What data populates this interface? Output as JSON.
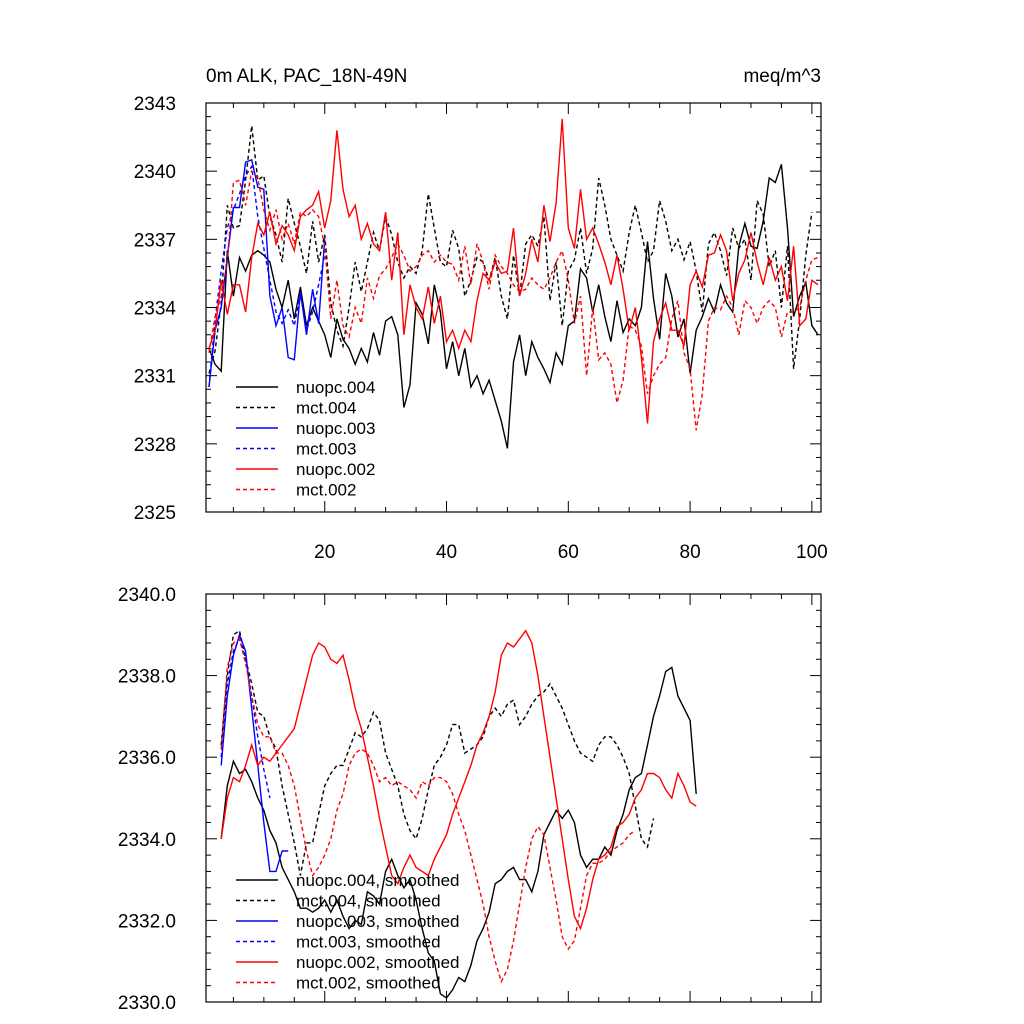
{
  "chart_data": [
    {
      "type": "line",
      "title": "0m ALK, PAC_18N-49N",
      "units": "meq/m^3",
      "xlabel": "",
      "ylabel": "",
      "xlim": [
        0.5,
        101.5
      ],
      "ylim": [
        2325,
        2343
      ],
      "xticks": [
        20,
        40,
        60,
        80,
        100
      ],
      "xtick_labels": [
        "20",
        "40",
        "60",
        "80",
        "100"
      ],
      "yticks": [
        2325,
        2328,
        2331,
        2334,
        2337,
        2340,
        2343
      ],
      "ytick_labels": [
        "2325",
        "2328",
        "2331",
        "2334",
        "2337",
        "2340",
        "2343"
      ],
      "legend_position": "bottom-left",
      "series": [
        {
          "name": "nuopc.004",
          "color": "#000000",
          "dash": "solid",
          "x_start": 1,
          "values": [
            2332.2,
            2331.5,
            2331.2,
            2336.5,
            2334.5,
            2336.2,
            2335.6,
            2336.3,
            2336.5,
            2336.3,
            2336.0,
            2334.8,
            2334.0,
            2335.2,
            2333.5,
            2334.9,
            2333.2,
            2334.0,
            2333.4,
            2332.8,
            2331.8,
            2333.5,
            2332.6,
            2332.2,
            2331.5,
            2332.2,
            2331.6,
            2332.9,
            2331.9,
            2333.4,
            2333.6,
            2332.8,
            2329.6,
            2330.6,
            2334.2,
            2333.7,
            2332.4,
            2335.0,
            2333.8,
            2331.3,
            2332.5,
            2331.0,
            2332.2,
            2330.5,
            2331.0,
            2330.2,
            2330.8,
            2329.9,
            2329.0,
            2327.8,
            2331.6,
            2332.8,
            2331.0,
            2332.5,
            2331.8,
            2331.3,
            2330.7,
            2332.0,
            2331.5,
            2333.2,
            2333.4,
            2335.7,
            2335.3,
            2333.8,
            2335.0,
            2333.6,
            2332.5,
            2334.3,
            2332.9,
            2333.5,
            2333.2,
            2334.0,
            2336.9,
            2334.4,
            2332.6,
            2335.5,
            2334.5,
            2332.7,
            2333.5,
            2331.1,
            2333.0,
            2333.6,
            2334.4,
            2333.8,
            2335.0,
            2334.2,
            2333.8,
            2336.7,
            2337.7,
            2336.7,
            2336.6,
            2337.8,
            2339.7,
            2339.5,
            2340.3,
            2337.5,
            2333.6,
            2334.5,
            2335.1,
            2333.2,
            2332.8
          ]
        },
        {
          "name": "mct.004",
          "color": "#000000",
          "dash": "dashed",
          "x_start": 1,
          "values": [
            2331.1,
            2332.1,
            2334.2,
            2338.5,
            2337.5,
            2337.6,
            2339.6,
            2342.0,
            2339.6,
            2339.8,
            2338.0,
            2337.2,
            2336.0,
            2338.8,
            2337.7,
            2336.7,
            2335.5,
            2337.8,
            2336.0,
            2337.2,
            2334.2,
            2333.0,
            2332.3,
            2334.0,
            2336.0,
            2334.7,
            2336.0,
            2337.3,
            2336.5,
            2338.0,
            2337.2,
            2336.0,
            2335.3,
            2335.8,
            2335.5,
            2336.5,
            2339.0,
            2337.5,
            2336.0,
            2335.8,
            2337.4,
            2336.6,
            2334.5,
            2335.2,
            2336.2,
            2336.0,
            2335.2,
            2336.2,
            2334.5,
            2333.5,
            2336.3,
            2334.5,
            2336.8,
            2337.2,
            2336.7,
            2338.0,
            2334.3,
            2336.0,
            2333.2,
            2335.6,
            2336.1,
            2337.5,
            2335.5,
            2336.6,
            2339.7,
            2338.5,
            2337.0,
            2336.3,
            2335.6,
            2337.3,
            2338.5,
            2337.3,
            2336.0,
            2336.5,
            2338.7,
            2337.8,
            2336.5,
            2337.0,
            2336.1,
            2336.9,
            2335.6,
            2333.8,
            2336.8,
            2337.3,
            2336.5,
            2335.4,
            2337.5,
            2336.6,
            2337.0,
            2335.2,
            2338.7,
            2338.1,
            2335.8,
            2336.5,
            2334.0,
            2336.7,
            2331.3,
            2333.5,
            2336.3,
            2338.2
          ]
        },
        {
          "name": "nuopc.003",
          "color": "#0000ff",
          "dash": "solid",
          "x_start": 1,
          "values": [
            2330.5,
            2333.0,
            2334.0,
            2336.2,
            2338.4,
            2338.4,
            2340.4,
            2340.5,
            2339.3,
            2339.2,
            2334.5,
            2333.2,
            2334.0,
            2331.8,
            2331.7,
            2334.7,
            2332.8,
            2334.8,
            2333.3,
            2337.0
          ]
        },
        {
          "name": "mct.003",
          "color": "#0000ff",
          "dash": "dashed",
          "x_start": 1,
          "values": [
            2330.5,
            2333.5,
            2335.6,
            2337.5,
            2338.3,
            2339.0,
            2339.8,
            2340.2,
            2338.0,
            2336.6,
            2335.2,
            2333.8,
            2333.3,
            2333.9,
            2333.2,
            2334.6,
            2333.0,
            2333.8,
            2335.0,
            2336.3
          ]
        },
        {
          "name": "nuopc.002",
          "color": "#ff0000",
          "dash": "solid",
          "x_start": 1,
          "values": [
            2332.2,
            2333.0,
            2335.2,
            2333.7,
            2335.0,
            2335.0,
            2333.8,
            2336.2,
            2337.7,
            2337.2,
            2338.2,
            2336.8,
            2337.6,
            2337.2,
            2336.5,
            2338.0,
            2338.3,
            2338.5,
            2339.1,
            2337.5,
            2338.7,
            2341.8,
            2339.2,
            2338.0,
            2338.5,
            2337.0,
            2337.7,
            2336.8,
            2336.5,
            2338.2,
            2335.2,
            2337.3,
            2332.8,
            2335.0,
            2334.0,
            2333.5,
            2334.9,
            2333.3,
            2334.5,
            2332.5,
            2333.0,
            2332.2,
            2333.0,
            2332.5,
            2334.3,
            2335.5,
            2335.2,
            2336.0,
            2335.5,
            2335.6,
            2337.5,
            2334.5,
            2335.5,
            2337.0,
            2336.0,
            2338.5,
            2336.9,
            2338.6,
            2342.3,
            2337.5,
            2336.6,
            2339.2,
            2337.0,
            2337.5,
            2336.8,
            2336.0,
            2335.0,
            2336.3,
            2334.8,
            2333.0,
            2334.0,
            2331.8,
            2328.9,
            2332.5,
            2333.5,
            2334.2,
            2333.0,
            2333.0,
            2332.3,
            2335.0,
            2335.6,
            2334.9,
            2336.3,
            2336.4,
            2337.2,
            2336.5,
            2334.3,
            2335.5,
            2336.1,
            2337.3,
            2336.0,
            2335.0,
            2336.2,
            2335.2,
            2335.8,
            2334.3,
            2336.7,
            2333.2,
            2333.5,
            2335.2,
            2335.0
          ]
        },
        {
          "name": "mct.002",
          "color": "#ff0000",
          "dash": "dashed",
          "x_start": 1,
          "values": [
            2332.0,
            2333.6,
            2334.5,
            2336.0,
            2339.5,
            2339.6,
            2338.5,
            2340.0,
            2339.7,
            2338.3,
            2337.4,
            2338.3,
            2337.0,
            2337.7,
            2336.8,
            2338.2,
            2338.0,
            2338.3,
            2338.0,
            2336.7,
            2333.5,
            2335.2,
            2333.2,
            2332.7,
            2334.0,
            2333.3,
            2335.3,
            2334.4,
            2335.4,
            2335.7,
            2336.2,
            2336.8,
            2336.3,
            2335.6,
            2335.8,
            2336.3,
            2336.5,
            2336.0,
            2336.3,
            2336.0,
            2335.9,
            2335.2,
            2336.7,
            2335.0,
            2336.8,
            2336.0,
            2334.8,
            2336.3,
            2335.8,
            2335.5,
            2335.0,
            2334.7,
            2334.8,
            2335.3,
            2335.0,
            2334.8,
            2335.3,
            2336.0,
            2336.5,
            2335.2,
            2333.3,
            2334.5,
            2331.0,
            2334.0,
            2331.7,
            2332.0,
            2331.5,
            2329.8,
            2330.8,
            2333.2,
            2333.0,
            2332.3,
            2330.2,
            2331.0,
            2331.5,
            2331.8,
            2333.5,
            2334.3,
            2332.0,
            2331.3,
            2328.6,
            2330.2,
            2333.4,
            2334.0,
            2333.9,
            2334.5,
            2334.0,
            2332.8,
            2334.3,
            2334.0,
            2333.3,
            2334.0,
            2334.3,
            2334.0,
            2332.7,
            2333.8,
            2333.8,
            2334.0,
            2335.2,
            2336.1,
            2336.2
          ]
        }
      ]
    },
    {
      "type": "line",
      "title": "",
      "xlabel": "",
      "ylabel": "",
      "xlim": [
        0.5,
        101.5
      ],
      "ylim": [
        2330.0,
        2340.0
      ],
      "xticks": [
        20,
        40,
        60,
        80,
        100
      ],
      "xtick_labels": [],
      "yticks": [
        2330,
        2332,
        2334,
        2336,
        2338,
        2340
      ],
      "ytick_labels": [
        "2330.0",
        "2332.0",
        "2334.0",
        "2336.0",
        "2338.0",
        "2340.0"
      ],
      "legend_position": "bottom-left",
      "series": [
        {
          "name": "nuopc.004, smoothed",
          "color": "#000000",
          "dash": "solid",
          "x_start": 3,
          "values": [
            2334.0,
            2335.3,
            2335.9,
            2335.6,
            2335.7,
            2335.4,
            2335.0,
            2334.7,
            2334.2,
            2333.9,
            2333.3,
            2333.0,
            2332.7,
            2332.3,
            2332.3,
            2332.2,
            2332.3,
            2332.5,
            2332.2,
            2332.5,
            2332.1,
            2331.8,
            2332.0,
            2331.9,
            2332.7,
            2332.6,
            2332.4,
            2333.2,
            2333.5,
            2333.1,
            2332.8,
            2333.0,
            2332.5,
            2331.8,
            2331.2,
            2331.0,
            2330.2,
            2330.1,
            2330.3,
            2330.6,
            2330.5,
            2330.9,
            2331.5,
            2331.8,
            2332.2,
            2332.9,
            2333.0,
            2333.2,
            2333.3,
            2333.0,
            2333.0,
            2332.7,
            2333.2,
            2334.1,
            2334.4,
            2334.7,
            2334.5,
            2334.7,
            2334.4,
            2333.6,
            2333.3,
            2333.5,
            2333.5,
            2333.8,
            2333.6,
            2334.2,
            2334.6,
            2335.2,
            2335.5,
            2335.6,
            2336.3,
            2337.0,
            2337.5,
            2338.1,
            2338.2,
            2337.5,
            2337.2,
            2336.9,
            2335.1
          ]
        },
        {
          "name": "mct.004, smoothed",
          "color": "#000000",
          "dash": "dashed",
          "x_start": 3,
          "values": [
            2336.3,
            2338.0,
            2339.0,
            2339.1,
            2338.4,
            2337.8,
            2337.1,
            2337.0,
            2336.5,
            2336.2,
            2335.3,
            2334.6,
            2333.9,
            2333.1,
            2333.9,
            2333.9,
            2334.6,
            2335.3,
            2335.6,
            2335.8,
            2335.8,
            2336.2,
            2336.6,
            2336.5,
            2336.7,
            2337.1,
            2336.9,
            2336.1,
            2335.7,
            2335.3,
            2334.6,
            2334.2,
            2334.0,
            2334.5,
            2335.2,
            2335.8,
            2336.0,
            2336.3,
            2336.8,
            2336.8,
            2336.1,
            2336.2,
            2336.3,
            2336.5,
            2337.0,
            2337.2,
            2337.0,
            2337.3,
            2337.4,
            2336.8,
            2337.0,
            2337.3,
            2337.5,
            2337.6,
            2337.8,
            2337.5,
            2337.2,
            2336.8,
            2336.4,
            2336.1,
            2336.0,
            2335.9,
            2336.3,
            2336.5,
            2336.5,
            2336.3,
            2336.0,
            2335.6,
            2334.8,
            2334.0,
            2333.8,
            2334.5
          ]
        },
        {
          "name": "nuopc.003, smoothed",
          "color": "#0000ff",
          "dash": "solid",
          "x_start": 3,
          "values": [
            2335.8,
            2337.5,
            2338.5,
            2339.0,
            2338.6,
            2337.2,
            2335.8,
            2334.4,
            2333.2,
            2333.2,
            2333.7,
            2333.7
          ]
        },
        {
          "name": "mct.003, smoothed",
          "color": "#0000ff",
          "dash": "dashed",
          "x_start": 3,
          "values": [
            2336.0,
            2337.8,
            2338.6,
            2338.9,
            2338.4,
            2337.5,
            2336.5,
            2335.7,
            2335.0
          ]
        },
        {
          "name": "nuopc.002, smoothed",
          "color": "#ff0000",
          "dash": "solid",
          "x_start": 3,
          "values": [
            2334.0,
            2335.0,
            2335.5,
            2335.4,
            2335.8,
            2336.3,
            2335.8,
            2336.0,
            2335.9,
            2336.1,
            2336.3,
            2336.5,
            2336.7,
            2337.3,
            2337.9,
            2338.5,
            2338.8,
            2338.7,
            2338.4,
            2338.3,
            2338.5,
            2337.9,
            2337.2,
            2336.7,
            2336.0,
            2335.3,
            2334.5,
            2333.8,
            2333.1,
            2332.9,
            2333.3,
            2333.6,
            2333.3,
            2333.2,
            2333.1,
            2333.5,
            2333.8,
            2334.1,
            2334.6,
            2335.0,
            2335.4,
            2335.8,
            2336.3,
            2336.6,
            2337.0,
            2337.6,
            2338.5,
            2338.8,
            2338.7,
            2338.9,
            2339.1,
            2338.8,
            2338.0,
            2337.0,
            2336.0,
            2335.0,
            2334.0,
            2333.0,
            2332.1,
            2331.8,
            2332.3,
            2333.0,
            2333.5,
            2333.6,
            2333.8,
            2334.3,
            2334.4,
            2334.6,
            2335.0,
            2335.2,
            2335.6,
            2335.6,
            2335.5,
            2335.2,
            2335.0,
            2335.6,
            2335.3,
            2334.9,
            2334.8
          ]
        },
        {
          "name": "mct.002, smoothed",
          "color": "#ff0000",
          "dash": "dashed",
          "x_start": 3,
          "values": [
            2336.2,
            2338.2,
            2338.8,
            2338.9,
            2338.3,
            2337.5,
            2336.8,
            2336.5,
            2336.5,
            2336.1,
            2336.1,
            2335.8,
            2335.3,
            2334.5,
            2333.7,
            2333.1,
            2333.3,
            2333.6,
            2334.0,
            2334.7,
            2335.1,
            2335.8,
            2336.1,
            2336.2,
            2336.1,
            2335.8,
            2335.4,
            2335.5,
            2335.3,
            2335.4,
            2335.3,
            2335.2,
            2335.0,
            2335.4,
            2335.3,
            2335.5,
            2335.5,
            2335.4,
            2335.1,
            2334.6,
            2334.2,
            2333.6,
            2333.0,
            2332.4,
            2331.6,
            2331.0,
            2330.5,
            2330.8,
            2331.5,
            2332.4,
            2333.3,
            2334.0,
            2334.3,
            2334.1,
            2333.3,
            2332.5,
            2331.6,
            2331.3,
            2331.5,
            2332.3,
            2333.1,
            2333.4,
            2333.4,
            2333.5,
            2333.7,
            2333.8,
            2333.9,
            2334.1,
            2334.2
          ]
        }
      ]
    }
  ]
}
